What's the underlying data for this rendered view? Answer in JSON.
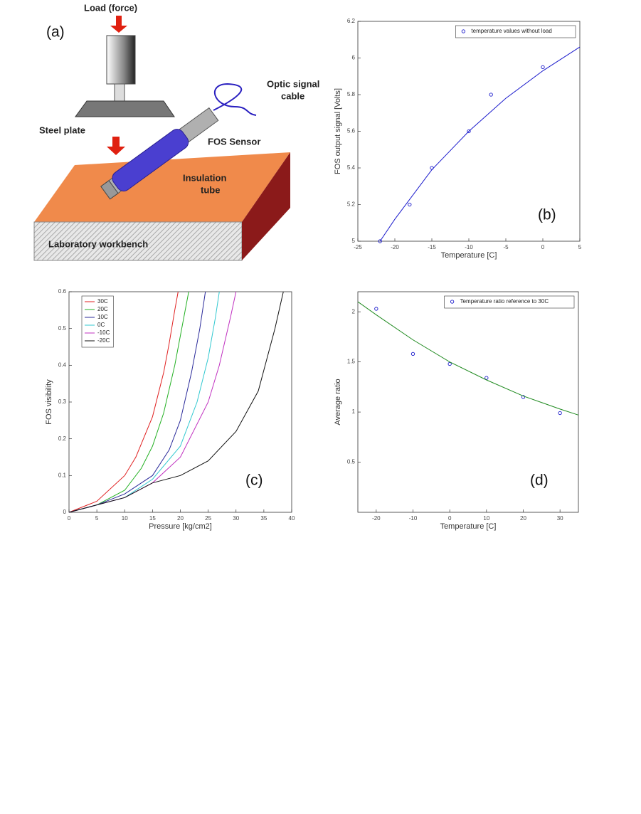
{
  "diagram": {
    "panel_label": "(a)",
    "load": "Load (force)",
    "cable": [
      "Optic signal",
      "cable"
    ],
    "plate": "Steel plate",
    "sensor": "FOS Sensor",
    "tube": [
      "Insulation",
      "tube"
    ],
    "bench": "Laboratory workbench"
  },
  "chart_data": [
    {
      "type": "scatter",
      "annotation": "(b)",
      "x_label": "Temperature [C]",
      "y_label": "FOS output signal [Volts]",
      "xlim": [
        -25,
        5
      ],
      "xticks": [
        -25,
        -20,
        -15,
        -10,
        -5,
        0,
        5
      ],
      "ylim": [
        5,
        6.2
      ],
      "yticks": [
        5,
        5.2,
        5.4,
        5.6,
        5.8,
        6,
        6.2
      ],
      "legend": "upper right",
      "series": [
        {
          "name": "temperature values without load",
          "style": "markers",
          "color": "#1a1acc",
          "x": [
            -22,
            -18,
            -15,
            -10,
            -7,
            0
          ],
          "values": [
            5.0,
            5.2,
            5.4,
            5.6,
            5.8,
            5.95
          ]
        },
        {
          "style": "line",
          "color": "#1a1acc",
          "x": [
            -22,
            -20,
            -15,
            -10,
            -5,
            0,
            5
          ],
          "values": [
            5.0,
            5.12,
            5.39,
            5.6,
            5.78,
            5.93,
            6.06
          ]
        }
      ]
    },
    {
      "type": "line",
      "annotation": "(c)",
      "x_label": "Pressure [kg/cm2]",
      "y_label": "FOS visibility",
      "xlim": [
        0,
        40
      ],
      "xticks": [
        0,
        5,
        10,
        15,
        20,
        25,
        30,
        35,
        40
      ],
      "ylim": [
        0,
        0.6
      ],
      "yticks": [
        0,
        0.1,
        0.2,
        0.3,
        0.4,
        0.5,
        0.6
      ],
      "legend": "upper left",
      "series": [
        {
          "name": "30C",
          "style": "line",
          "color": "#e02020",
          "x": [
            0,
            5,
            10,
            12,
            15,
            17,
            18,
            19,
            19.6
          ],
          "values": [
            0,
            0.03,
            0.1,
            0.15,
            0.26,
            0.38,
            0.46,
            0.55,
            0.6
          ]
        },
        {
          "name": "20C",
          "style": "line",
          "color": "#22b022",
          "x": [
            0,
            5,
            10,
            13,
            15,
            17,
            19,
            20.5,
            21.5
          ],
          "values": [
            0,
            0.02,
            0.06,
            0.12,
            0.18,
            0.27,
            0.4,
            0.52,
            0.6
          ]
        },
        {
          "name": "10C",
          "style": "line",
          "color": "#2a2a9a",
          "x": [
            0,
            5,
            10,
            15,
            18,
            20,
            22,
            23.5,
            24.5
          ],
          "values": [
            0,
            0.02,
            0.05,
            0.1,
            0.17,
            0.25,
            0.38,
            0.5,
            0.6
          ]
        },
        {
          "name": "0C",
          "style": "line",
          "color": "#30c8d0",
          "x": [
            0,
            5,
            10,
            15,
            20,
            23,
            25,
            26.3,
            27
          ],
          "values": [
            0,
            0.02,
            0.04,
            0.09,
            0.18,
            0.3,
            0.42,
            0.53,
            0.6
          ]
        },
        {
          "name": "-10C",
          "style": "line",
          "color": "#c030c0",
          "x": [
            0,
            5,
            10,
            15,
            20,
            25,
            27,
            29,
            30
          ],
          "values": [
            0,
            0.02,
            0.04,
            0.08,
            0.15,
            0.3,
            0.4,
            0.53,
            0.6
          ]
        },
        {
          "name": "-20C",
          "style": "line",
          "color": "#111111",
          "x": [
            0,
            5,
            10,
            15,
            20,
            25,
            30,
            34,
            37,
            38.5
          ],
          "values": [
            0,
            0.02,
            0.04,
            0.08,
            0.1,
            0.14,
            0.22,
            0.33,
            0.5,
            0.6
          ]
        }
      ]
    },
    {
      "type": "scatter",
      "annotation": "(d)",
      "x_label": "Temperature [C]",
      "y_label": "Average ratio",
      "xlim": [
        -25,
        35
      ],
      "xticks": [
        -20,
        -10,
        0,
        10,
        20,
        30
      ],
      "ylim": [
        0,
        2.2
      ],
      "yticks": [
        0.5,
        1,
        1.5,
        2
      ],
      "legend": "upper right",
      "series": [
        {
          "name": "Temperature ratio reference to 30C",
          "style": "markers",
          "color": "#1a1acc",
          "x": [
            -20,
            -10,
            0,
            10,
            20,
            30
          ],
          "values": [
            2.03,
            1.58,
            1.48,
            1.34,
            1.15,
            0.99
          ]
        },
        {
          "style": "line",
          "color": "#1f8a1f",
          "x": [
            -25,
            -20,
            -10,
            0,
            10,
            20,
            30,
            35
          ],
          "values": [
            2.1,
            1.97,
            1.72,
            1.5,
            1.32,
            1.16,
            1.03,
            0.97
          ]
        }
      ]
    }
  ]
}
